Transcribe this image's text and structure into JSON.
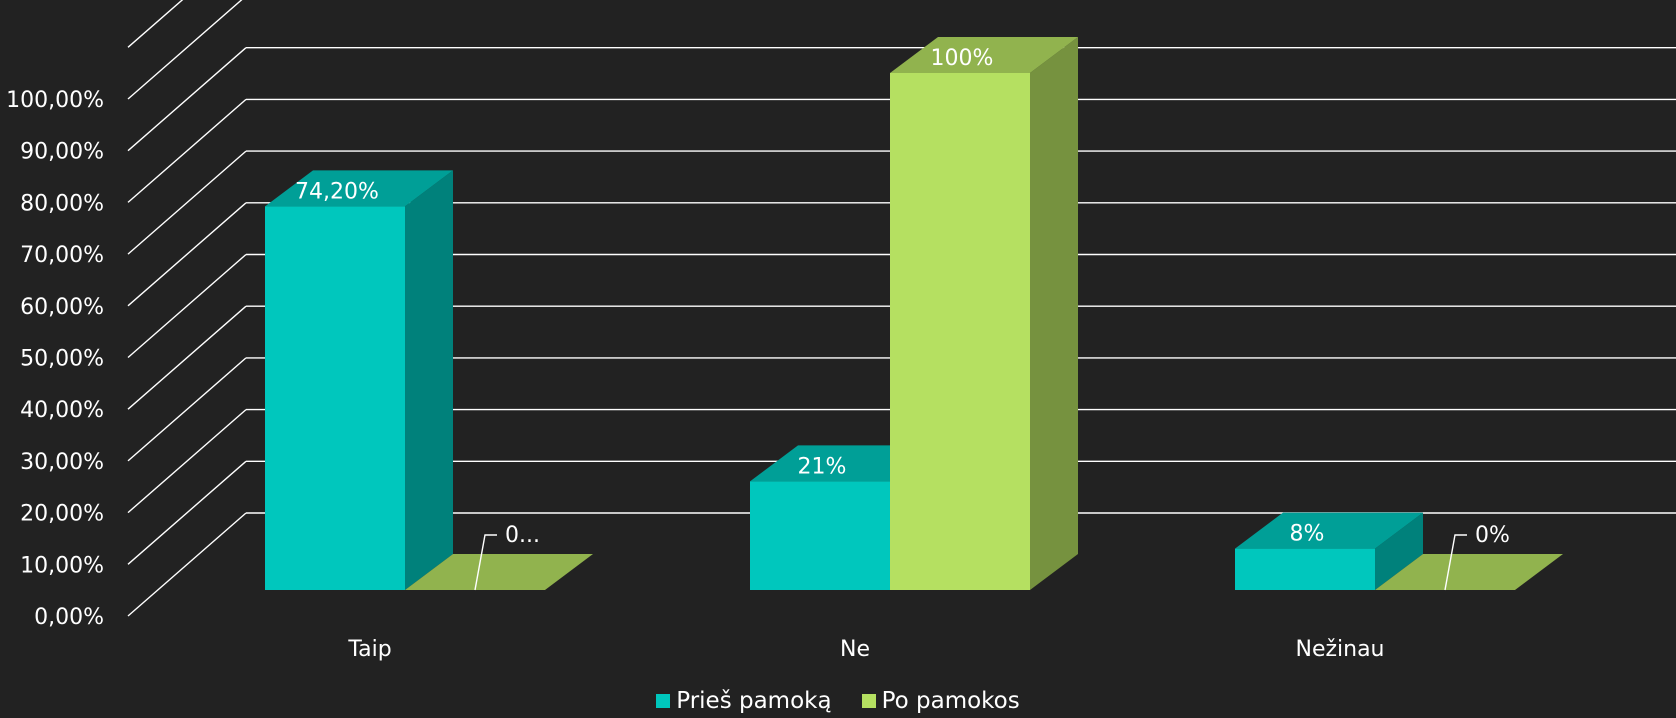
{
  "chart_data": {
    "type": "bar",
    "three_d": true,
    "categories": [
      "Taip",
      "Ne",
      "Nežinau"
    ],
    "series": [
      {
        "name": "Prieš pamoką",
        "values": [
          74.2,
          21,
          8
        ],
        "labels": [
          "74,20%",
          "21%",
          "8%"
        ],
        "color": "#00c7bd"
      },
      {
        "name": "Po pamokos",
        "values": [
          0,
          100,
          0
        ],
        "labels": [
          "0...",
          "100%",
          "0%"
        ],
        "color": "#b5e061"
      }
    ],
    "y_ticks": [
      "0,00%",
      "10,00%",
      "20,00%",
      "30,00%",
      "40,00%",
      "50,00%",
      "60,00%",
      "70,00%",
      "80,00%",
      "90,00%",
      "100,00%"
    ],
    "ylim": [
      0,
      110
    ],
    "grid": true,
    "legend_position": "bottom",
    "colors": {
      "background": "#222222",
      "text": "#ffffff",
      "grid": "#ffffff"
    }
  }
}
